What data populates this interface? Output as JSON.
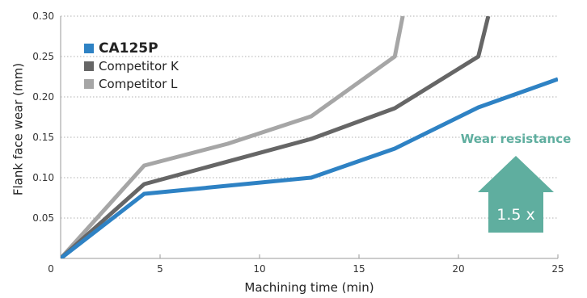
{
  "chart_data": {
    "type": "line",
    "title": "",
    "xlabel": "Machining time (min)",
    "ylabel": "Flank face wear (mm)",
    "xlim": [
      0,
      25
    ],
    "ylim": [
      0,
      0.3
    ],
    "x_ticks": [
      0,
      5,
      10,
      15,
      20,
      25
    ],
    "x_tick_labels": [
      "0",
      "5",
      "10",
      "15",
      "20",
      "25"
    ],
    "y_ticks": [
      0.05,
      0.1,
      0.15,
      0.2,
      0.25,
      0.3
    ],
    "y_tick_labels": [
      "0.05",
      "0.10",
      "0.15",
      "0.20",
      "0.25",
      "0.30"
    ],
    "grid": "horizontal-dotted",
    "legend_position": "top-left",
    "series": [
      {
        "name": "CA125P",
        "color": "#2e82c4",
        "points": [
          [
            0,
            0
          ],
          [
            4.2,
            0.08
          ],
          [
            12.6,
            0.1
          ],
          [
            16.8,
            0.136
          ],
          [
            21,
            0.187
          ],
          [
            25,
            0.222
          ]
        ]
      },
      {
        "name": "Competitor K",
        "color": "#666666",
        "points": [
          [
            0,
            0
          ],
          [
            4.2,
            0.092
          ],
          [
            12.6,
            0.148
          ],
          [
            16.8,
            0.186
          ],
          [
            21,
            0.25
          ],
          [
            21.5,
            0.3
          ]
        ]
      },
      {
        "name": "Competitor L",
        "color": "#a6a6a6",
        "points": [
          [
            0,
            0
          ],
          [
            4.2,
            0.115
          ],
          [
            8.4,
            0.142
          ],
          [
            12.6,
            0.176
          ],
          [
            16.8,
            0.25
          ],
          [
            17.2,
            0.3
          ]
        ]
      }
    ],
    "annotation": {
      "title": "Wear resistance",
      "value": "1.5 x",
      "color": "#5fae9f"
    }
  }
}
